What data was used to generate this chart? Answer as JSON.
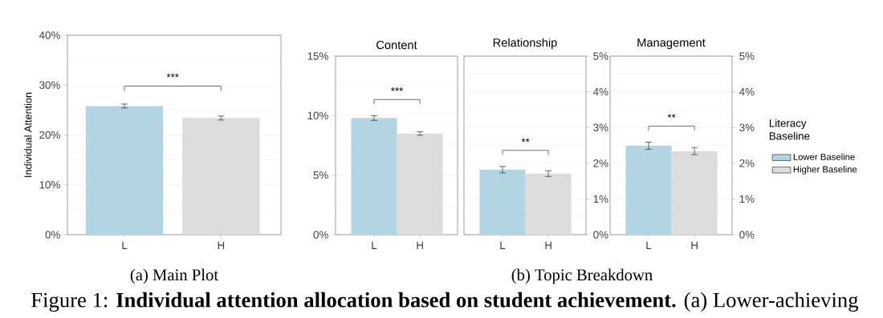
{
  "chart_data": [
    {
      "type": "bar",
      "ylabel": "Individual Attention",
      "categories": [
        "L",
        "H"
      ],
      "ylim": [
        0,
        40
      ],
      "yticks": [
        {
          "value": 0,
          "label": "0%"
        },
        {
          "value": 10,
          "label": "10%"
        },
        {
          "value": 20,
          "label": "20%"
        },
        {
          "value": 30,
          "label": "30%"
        },
        {
          "value": 40,
          "label": "40%"
        }
      ],
      "grid": "y",
      "series": [
        {
          "color": "#b3d4e2",
          "values": [
            25.8,
            null
          ],
          "errors": [
            0.4,
            null
          ]
        },
        {
          "color": "#dcdcdc",
          "values": [
            null,
            23.4
          ],
          "errors": [
            null,
            0.4
          ]
        }
      ],
      "annotations": [
        "***",
        "(a) Main Plot",
        "Figure 1: **Individual attention allocation based on student achievement.** (a) Lower-achieving"
      ]
    },
    {
      "type": "bar",
      "title": "Content",
      "categories": [
        "L",
        "H"
      ],
      "ylim": [
        0,
        15
      ],
      "yticks": [
        {
          "value": 0,
          "label": "0%"
        },
        {
          "value": 5,
          "label": "5%"
        },
        {
          "value": 10,
          "label": "10%"
        },
        {
          "value": 15,
          "label": "15%"
        }
      ],
      "grid": "y",
      "series": [
        {
          "color": "#b3d4e2",
          "values": [
            9.8,
            null
          ],
          "errors": [
            0.2,
            null
          ]
        },
        {
          "color": "#dcdcdc",
          "values": [
            null,
            8.5
          ],
          "errors": [
            null,
            0.15
          ]
        }
      ],
      "annotations": [
        "***",
        "(b) Topic Breakdown"
      ]
    },
    {
      "type": "bar",
      "title": "Relationship",
      "categories": [
        "L",
        "H"
      ],
      "y2lim": [
        0,
        5
      ],
      "y2ticks": [
        {
          "value": 0,
          "label": "0%"
        },
        {
          "value": 1,
          "label": "1%"
        },
        {
          "value": 2,
          "label": "2%"
        },
        {
          "value": 3,
          "label": "3%"
        },
        {
          "value": 4,
          "label": "4%"
        },
        {
          "value": 5,
          "label": "5%"
        }
      ],
      "grid": "y",
      "series": [
        {
          "color": "#b3d4e2",
          "axis": "y2",
          "values": [
            1.82,
            null
          ],
          "errors": [
            0.09,
            null
          ]
        },
        {
          "color": "#dcdcdc",
          "axis": "y2",
          "values": [
            null,
            1.71
          ],
          "errors": [
            null,
            0.08
          ]
        }
      ],
      "annotations": [
        "**"
      ]
    },
    {
      "type": "bar",
      "title": "Management",
      "categories": [
        "L",
        "H"
      ],
      "y2lim": [
        0,
        5
      ],
      "y2ticks": [
        {
          "value": 0,
          "label": "0%"
        },
        {
          "value": 1,
          "label": "1%"
        },
        {
          "value": 2,
          "label": "2%"
        },
        {
          "value": 3,
          "label": "3%"
        },
        {
          "value": 4,
          "label": "4%"
        },
        {
          "value": 5,
          "label": "5%"
        }
      ],
      "grid": "y",
      "legend": "right",
      "legend_title": "Literacy Baseline",
      "series": [
        {
          "name": "Lower Baseline",
          "color": "#b3d4e2",
          "axis": "y2",
          "values": [
            2.49,
            null
          ],
          "errors": [
            0.1,
            null
          ]
        },
        {
          "name": "Higher Baseline",
          "color": "#dcdcdc",
          "axis": "y2",
          "values": [
            null,
            2.34
          ],
          "errors": [
            null,
            0.1
          ]
        }
      ],
      "annotations": [
        "**"
      ]
    }
  ]
}
